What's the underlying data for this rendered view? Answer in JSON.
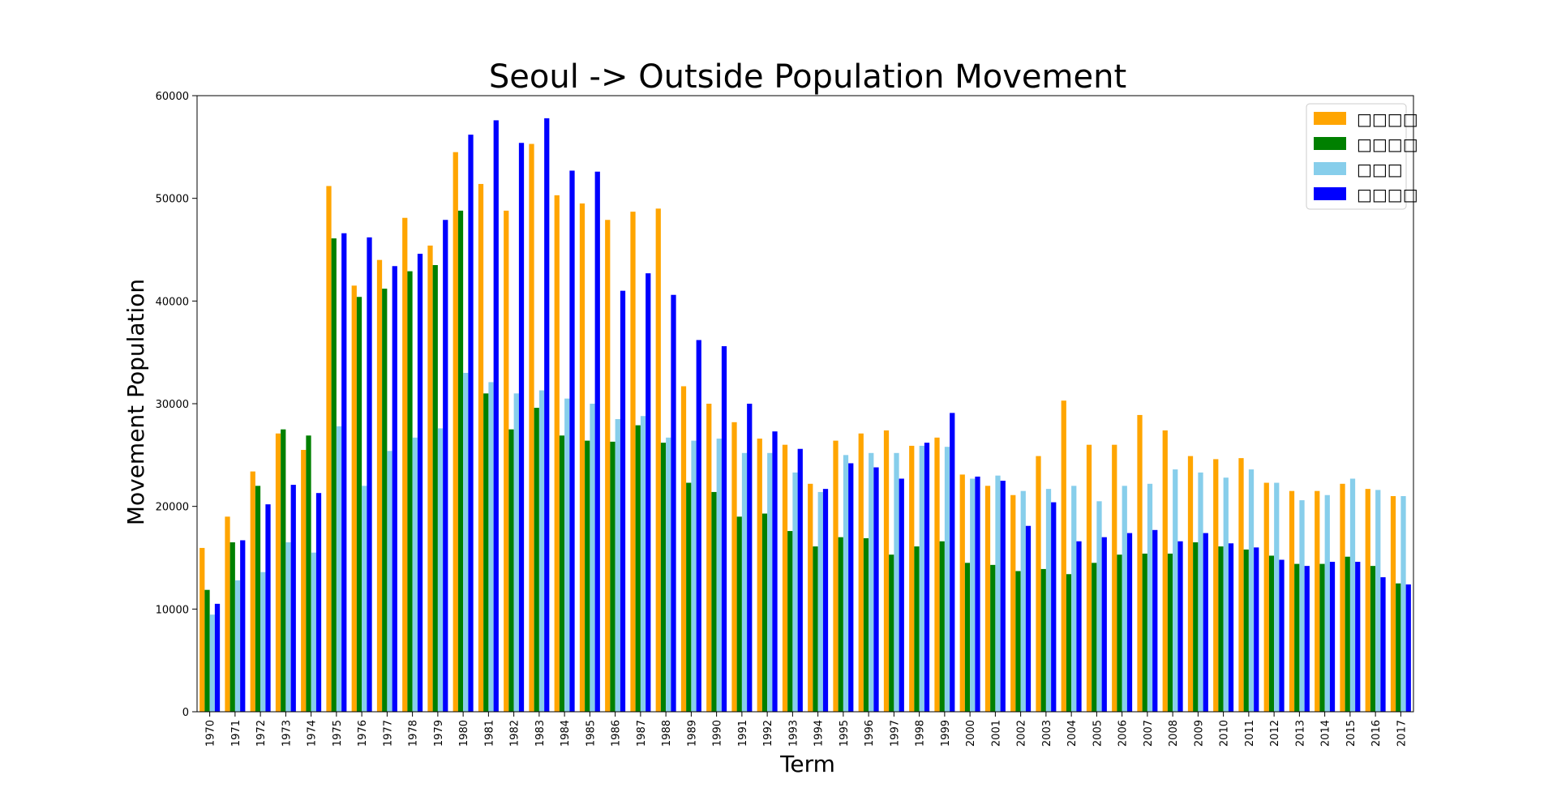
{
  "chart_data": {
    "type": "bar",
    "title": "Seoul -> Outside Population Movement",
    "xlabel": "Term",
    "ylabel": "Movement Population",
    "ylim": [
      0,
      60000
    ],
    "yticks": [
      0,
      10000,
      20000,
      30000,
      40000,
      50000,
      60000
    ],
    "grid": false,
    "legend_position": "top-right",
    "categories": [
      "1970",
      "1971",
      "1972",
      "1973",
      "1974",
      "1975",
      "1976",
      "1977",
      "1978",
      "1979",
      "1980",
      "1981",
      "1982",
      "1983",
      "1984",
      "1985",
      "1986",
      "1987",
      "1988",
      "1989",
      "1990",
      "1991",
      "1992",
      "1993",
      "1994",
      "1995",
      "1996",
      "1997",
      "1998",
      "1999",
      "2000",
      "2001",
      "2002",
      "2003",
      "2004",
      "2005",
      "2006",
      "2007",
      "2008",
      "2009",
      "2010",
      "2011",
      "2012",
      "2013",
      "2014",
      "2015",
      "2016",
      "2017"
    ],
    "series": [
      {
        "name": "□□□□",
        "color": "#FFA500",
        "values": [
          15954,
          19000,
          23400,
          27100,
          25500,
          51200,
          41500,
          44000,
          48100,
          45400,
          54500,
          51400,
          48800,
          55300,
          50300,
          49500,
          47900,
          48700,
          49000,
          31700,
          30000,
          28200,
          26600,
          26000,
          22200,
          26400,
          27100,
          27400,
          25900,
          26700,
          23100,
          22000,
          21100,
          24900,
          30300,
          26000,
          26000,
          28900,
          27400,
          24900,
          24600,
          24700,
          22300,
          21500,
          21500,
          22200,
          21700,
          21000
        ]
      },
      {
        "name": "□□□□",
        "color": "#008000",
        "values": [
          11868,
          16500,
          22000,
          27500,
          26900,
          46100,
          40400,
          41200,
          42900,
          43500,
          48800,
          31000,
          27500,
          29600,
          26900,
          26400,
          26300,
          27900,
          26200,
          22300,
          21400,
          19000,
          19300,
          17600,
          16100,
          17000,
          16900,
          15300,
          16100,
          16600,
          14500,
          14300,
          13700,
          13900,
          13400,
          14500,
          15300,
          15400,
          15400,
          16500,
          16100,
          15800,
          15200,
          14400,
          14400,
          15100,
          14200,
          12500
        ]
      },
      {
        "name": "□□□",
        "color": "#87CEEB",
        "values": [
          9459,
          12800,
          13600,
          16500,
          15500,
          27800,
          22000,
          25400,
          26700,
          27600,
          33000,
          32100,
          31000,
          31300,
          30500,
          30000,
          28500,
          28800,
          26700,
          26400,
          26600,
          25200,
          25200,
          23300,
          21400,
          25000,
          25200,
          25200,
          25900,
          25800,
          22700,
          23000,
          21500,
          21700,
          22000,
          20500,
          22000,
          22200,
          23600,
          23300,
          22800,
          23600,
          22300,
          20600,
          21100,
          22700,
          21600,
          21000
        ]
      },
      {
        "name": "□□□□",
        "color": "#0000FF",
        "values": [
          10513,
          16700,
          20200,
          22100,
          21300,
          46600,
          46200,
          43400,
          44600,
          47900,
          56200,
          57600,
          55400,
          57800,
          52700,
          52600,
          41000,
          42700,
          40600,
          36200,
          35600,
          30000,
          27300,
          25600,
          21700,
          24200,
          23800,
          22700,
          26200,
          29100,
          22900,
          22500,
          18100,
          20400,
          16600,
          17000,
          17400,
          17700,
          16600,
          17400,
          16400,
          16000,
          14800,
          14200,
          14600,
          14600,
          13100,
          12400
        ]
      }
    ]
  }
}
